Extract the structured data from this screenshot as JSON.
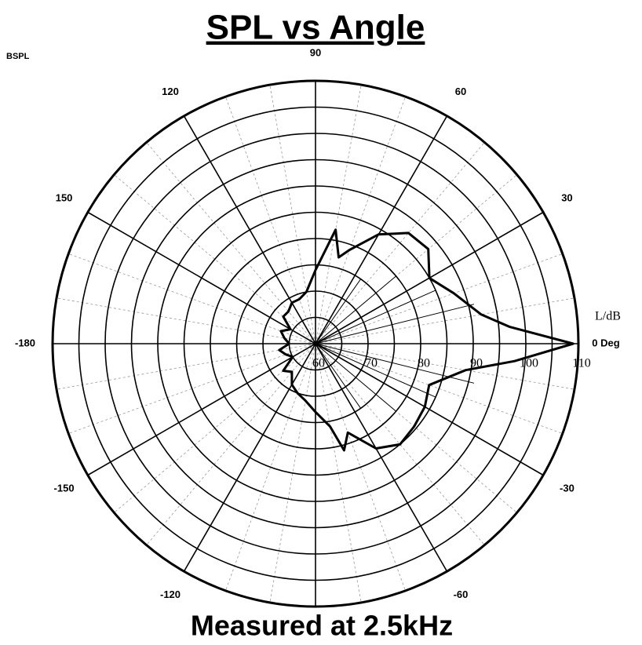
{
  "chart_data": {
    "type": "polar",
    "title": "SPL vs Angle",
    "subtitle": "Measured at 2.5kHz",
    "unit_label": "BSPL",
    "r_axis_label": "L/dB",
    "rlim": [
      60,
      110
    ],
    "rticks": [
      60,
      70,
      80,
      90,
      100,
      110
    ],
    "rgrid": [
      65,
      70,
      75,
      80,
      85,
      90,
      95,
      100,
      105,
      110
    ],
    "thetaticks": [
      {
        "value": 0,
        "label": "0 Deg"
      },
      30,
      60,
      90,
      120,
      150,
      -180,
      -150,
      -120,
      -60,
      -30
    ],
    "thetagrid": [
      -180,
      -150,
      -120,
      -90,
      -60,
      -30,
      0,
      30,
      60,
      90,
      120,
      150
    ],
    "thetagrid_minor": [
      -170,
      -160,
      -140,
      -130,
      -110,
      -100,
      -80,
      -70,
      -50,
      -40,
      -20,
      -10,
      10,
      20,
      40,
      50,
      70,
      80,
      100,
      110,
      130,
      140,
      160,
      170
    ],
    "series": [
      {
        "color": "#000000",
        "width": 3,
        "theta": [
          -180,
          -170,
          -160,
          -150,
          -140,
          -130,
          -120,
          -110,
          -100,
          -90,
          -80,
          -75,
          -70,
          -60,
          -50,
          -40,
          -30,
          -20,
          -10,
          -5,
          0,
          5,
          10,
          20,
          30,
          40,
          50,
          60,
          70,
          75,
          80,
          90,
          100,
          110,
          120,
          130,
          140,
          150,
          160,
          170,
          180
        ],
        "values": [
          65,
          67,
          66,
          65,
          68,
          67,
          69,
          70,
          71,
          73,
          76,
          81,
          78,
          83,
          85,
          84.5,
          84,
          83,
          89,
          98,
          109,
          97,
          92,
          88,
          85,
          88,
          87.5,
          84,
          79,
          77,
          82,
          74,
          70,
          69,
          69,
          68,
          68,
          65.5,
          67,
          66,
          65
        ]
      },
      {
        "color": "#000000",
        "width": 1,
        "theta": [
          -60,
          -55,
          -48,
          -40,
          -32,
          -24,
          -18,
          -14,
          -9,
          0,
          9,
          14,
          18,
          24,
          32,
          40,
          48,
          55,
          60
        ],
        "values": [
          60,
          75,
          60,
          80,
          60,
          85,
          60,
          91,
          60,
          110,
          60,
          91,
          60,
          85,
          60,
          80,
          60,
          75,
          60
        ]
      }
    ]
  }
}
